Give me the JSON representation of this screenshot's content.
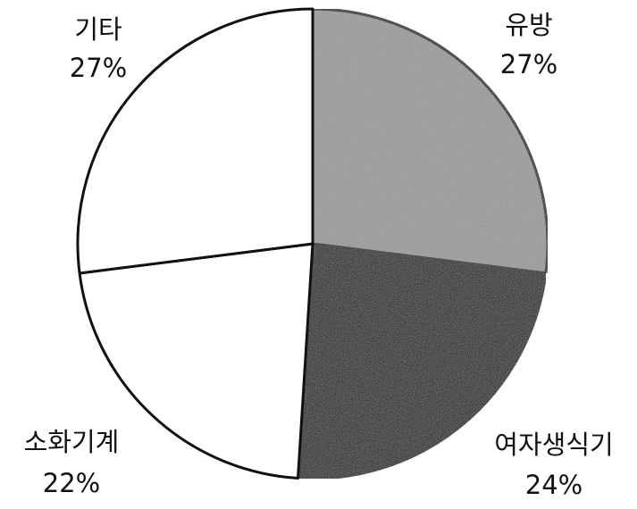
{
  "chart_data": {
    "type": "pie",
    "categories": [
      "유방",
      "여자생식기",
      "소화기계",
      "기타"
    ],
    "values": [
      27,
      24,
      22,
      27
    ],
    "value_labels": [
      "27%",
      "24%",
      "22%",
      "27%"
    ],
    "colors": [
      "#9a9a9a",
      "#0a0a0a",
      "#ffffff",
      "#ffffff"
    ]
  }
}
